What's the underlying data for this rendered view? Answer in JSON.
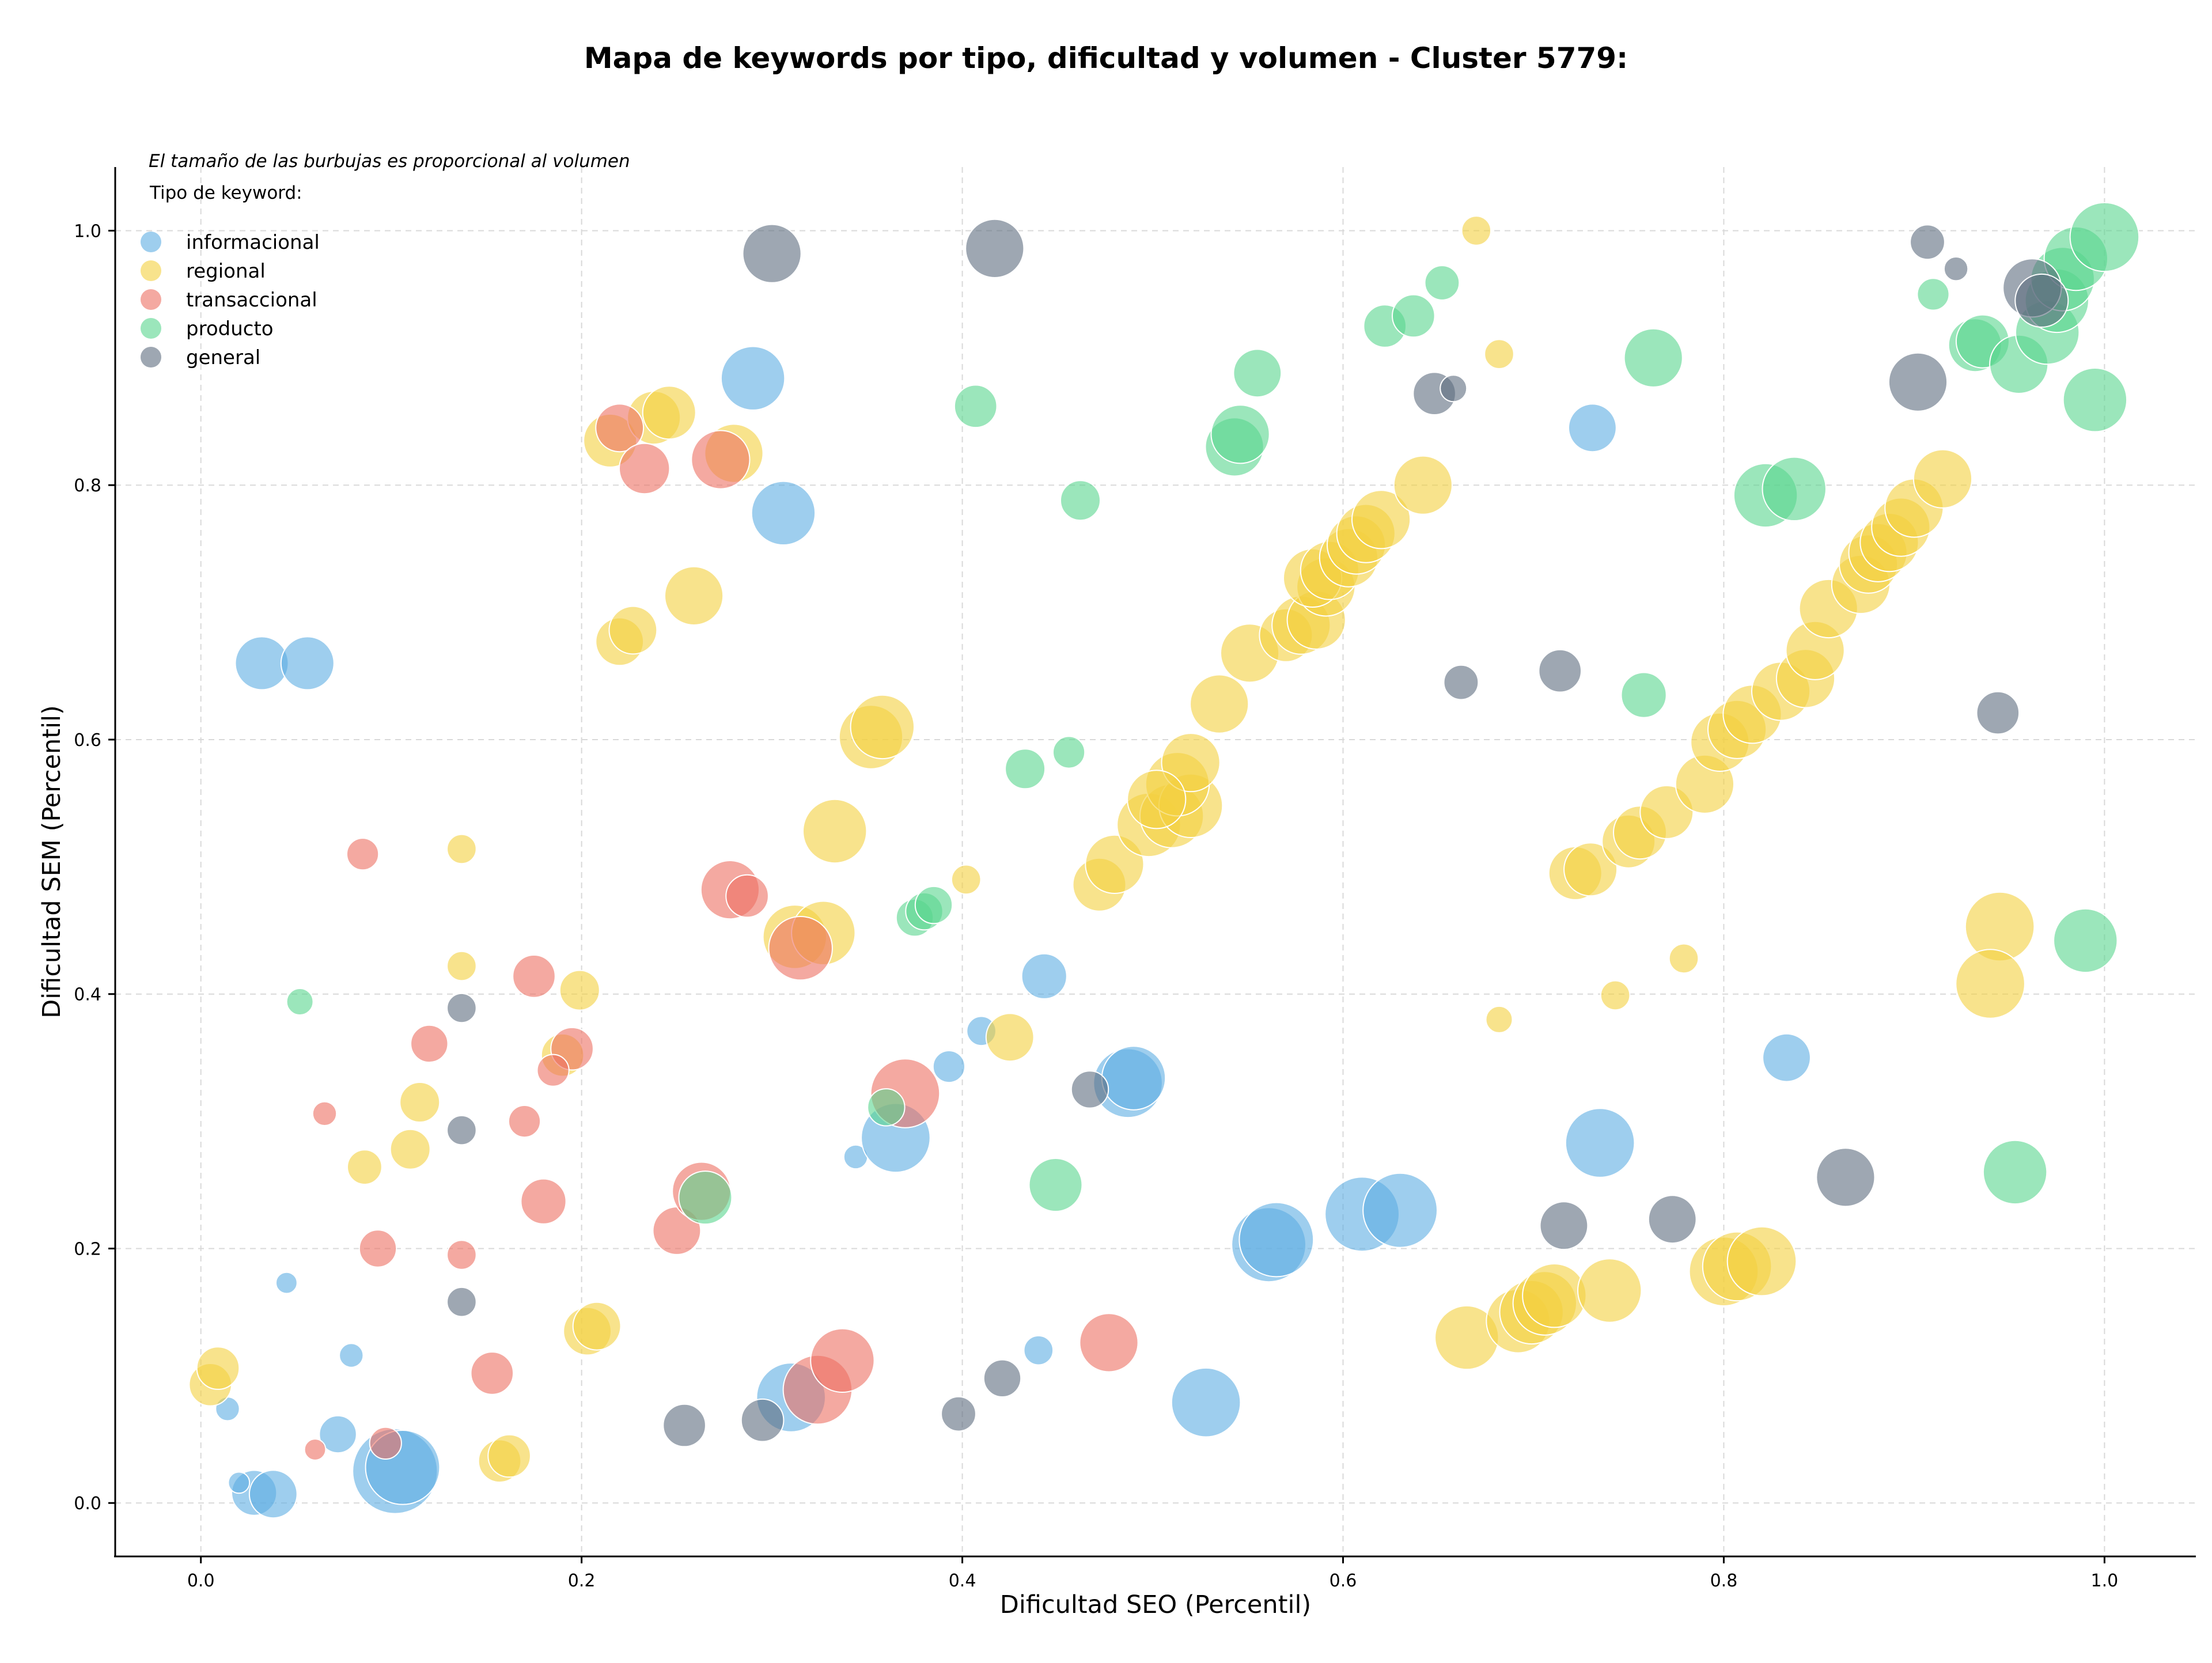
{
  "chart_data": {
    "type": "scatter",
    "title": "Mapa de keywords por tipo, dificultad y volumen - Cluster 5779:",
    "xlabel": "Dificultad SEO (Percentil)",
    "ylabel": "Dificultad SEM (Percentil)",
    "xlim": [
      -0.045,
      1.048
    ],
    "ylim": [
      -0.042,
      1.05
    ],
    "xticks": [
      0.0,
      0.2,
      0.4,
      0.6,
      0.8,
      1.0
    ],
    "xtick_labels": [
      "0.0",
      "0.2",
      "0.4",
      "0.6",
      "0.8",
      "1.0"
    ],
    "yticks": [
      0.0,
      0.2,
      0.4,
      0.6,
      0.8,
      1.0
    ],
    "ytick_labels": [
      "0.0",
      "0.2",
      "0.4",
      "0.6",
      "0.8",
      "1.0"
    ],
    "grid": true,
    "legend_title": "Tipo de keyword:",
    "legend_position": "top-left",
    "note": "El tamaño de las burbujas es proporcional al volumen",
    "series": [
      {
        "name": "informacional",
        "color": "#5dade2",
        "points": [
          [
            0.032,
            0.66,
            1.0
          ],
          [
            0.056,
            0.66,
            1.0
          ],
          [
            0.29,
            0.884,
            1.2
          ],
          [
            0.306,
            0.778,
            1.2
          ],
          [
            0.014,
            0.074,
            0.45
          ],
          [
            0.028,
            0.008,
            0.85
          ],
          [
            0.038,
            0.007,
            0.9
          ],
          [
            0.02,
            0.016,
            0.4
          ],
          [
            0.045,
            0.173,
            0.4
          ],
          [
            0.079,
            0.116,
            0.45
          ],
          [
            0.072,
            0.054,
            0.7
          ],
          [
            0.102,
            0.025,
            1.6
          ],
          [
            0.106,
            0.028,
            1.4
          ],
          [
            0.31,
            0.083,
            1.3
          ],
          [
            0.344,
            0.272,
            0.45
          ],
          [
            0.365,
            0.287,
            1.3
          ],
          [
            0.393,
            0.343,
            0.6
          ],
          [
            0.41,
            0.371,
            0.55
          ],
          [
            0.443,
            0.414,
            0.85
          ],
          [
            0.44,
            0.12,
            0.55
          ],
          [
            0.487,
            0.33,
            1.3
          ],
          [
            0.49,
            0.334,
            1.2
          ],
          [
            0.528,
            0.079,
            1.3
          ],
          [
            0.561,
            0.203,
            1.4
          ],
          [
            0.565,
            0.207,
            1.4
          ],
          [
            0.61,
            0.227,
            1.4
          ],
          [
            0.63,
            0.23,
            1.4
          ],
          [
            0.731,
            0.845,
            0.9
          ],
          [
            0.735,
            0.283,
            1.3
          ],
          [
            0.833,
            0.35,
            0.9
          ]
        ]
      },
      {
        "name": "regional",
        "color": "#f4d03f",
        "points": [
          [
            0.005,
            0.093,
            0.8
          ],
          [
            0.009,
            0.106,
            0.8
          ],
          [
            0.11,
            0.278,
            0.75
          ],
          [
            0.086,
            0.264,
            0.65
          ],
          [
            0.115,
            0.315,
            0.75
          ],
          [
            0.137,
            0.422,
            0.55
          ],
          [
            0.137,
            0.514,
            0.55
          ],
          [
            0.199,
            0.403,
            0.75
          ],
          [
            0.19,
            0.352,
            0.8
          ],
          [
            0.157,
            0.033,
            0.8
          ],
          [
            0.162,
            0.037,
            0.8
          ],
          [
            0.203,
            0.135,
            0.9
          ],
          [
            0.208,
            0.139,
            0.9
          ],
          [
            0.215,
            0.835,
            1.0
          ],
          [
            0.238,
            0.853,
            1.0
          ],
          [
            0.246,
            0.857,
            1.0
          ],
          [
            0.28,
            0.825,
            1.1
          ],
          [
            0.22,
            0.677,
            0.9
          ],
          [
            0.227,
            0.686,
            0.9
          ],
          [
            0.259,
            0.713,
            1.1
          ],
          [
            0.352,
            0.602,
            1.2
          ],
          [
            0.358,
            0.61,
            1.2
          ],
          [
            0.333,
            0.528,
            1.2
          ],
          [
            0.312,
            0.445,
            1.2
          ],
          [
            0.327,
            0.448,
            1.2
          ],
          [
            0.402,
            0.49,
            0.55
          ],
          [
            0.425,
            0.366,
            0.9
          ],
          [
            0.472,
            0.486,
            1.0
          ],
          [
            0.48,
            0.502,
            1.1
          ],
          [
            0.498,
            0.533,
            1.2
          ],
          [
            0.51,
            0.54,
            1.2
          ],
          [
            0.52,
            0.548,
            1.2
          ],
          [
            0.513,
            0.565,
            1.2
          ],
          [
            0.52,
            0.582,
            1.1
          ],
          [
            0.502,
            0.553,
            1.1
          ],
          [
            0.535,
            0.628,
            1.1
          ],
          [
            0.551,
            0.668,
            1.1
          ],
          [
            0.57,
            0.682,
            1.0
          ],
          [
            0.578,
            0.69,
            1.1
          ],
          [
            0.586,
            0.694,
            1.1
          ],
          [
            0.591,
            0.72,
            1.1
          ],
          [
            0.584,
            0.727,
            1.1
          ],
          [
            0.593,
            0.733,
            1.1
          ],
          [
            0.603,
            0.743,
            1.1
          ],
          [
            0.607,
            0.753,
            1.1
          ],
          [
            0.612,
            0.762,
            1.1
          ],
          [
            0.62,
            0.773,
            1.1
          ],
          [
            0.642,
            0.8,
            1.1
          ],
          [
            0.67,
            1.0,
            0.55
          ],
          [
            0.682,
            0.903,
            0.55
          ],
          [
            0.682,
            0.38,
            0.5
          ],
          [
            0.743,
            0.399,
            0.55
          ],
          [
            0.779,
            0.428,
            0.55
          ],
          [
            0.665,
            0.13,
            1.2
          ],
          [
            0.692,
            0.143,
            1.2
          ],
          [
            0.699,
            0.15,
            1.2
          ],
          [
            0.706,
            0.157,
            1.2
          ],
          [
            0.711,
            0.163,
            1.2
          ],
          [
            0.74,
            0.167,
            1.2
          ],
          [
            0.722,
            0.495,
            1.0
          ],
          [
            0.73,
            0.498,
            1.0
          ],
          [
            0.75,
            0.52,
            1.0
          ],
          [
            0.756,
            0.527,
            1.0
          ],
          [
            0.77,
            0.543,
            1.0
          ],
          [
            0.79,
            0.565,
            1.1
          ],
          [
            0.798,
            0.598,
            1.1
          ],
          [
            0.807,
            0.608,
            1.1
          ],
          [
            0.815,
            0.62,
            1.1
          ],
          [
            0.83,
            0.638,
            1.1
          ],
          [
            0.843,
            0.648,
            1.1
          ],
          [
            0.848,
            0.67,
            1.1
          ],
          [
            0.855,
            0.703,
            1.1
          ],
          [
            0.872,
            0.722,
            1.1
          ],
          [
            0.876,
            0.738,
            1.1
          ],
          [
            0.881,
            0.747,
            1.1
          ],
          [
            0.887,
            0.755,
            1.1
          ],
          [
            0.893,
            0.767,
            1.1
          ],
          [
            0.9,
            0.782,
            1.1
          ],
          [
            0.915,
            0.805,
            1.1
          ],
          [
            0.8,
            0.182,
            1.3
          ],
          [
            0.807,
            0.186,
            1.3
          ],
          [
            0.82,
            0.19,
            1.3
          ],
          [
            0.945,
            0.453,
            1.3
          ],
          [
            0.94,
            0.408,
            1.3
          ]
        ]
      },
      {
        "name": "transaccional",
        "color": "#ec7063",
        "points": [
          [
            0.22,
            0.845,
            0.9
          ],
          [
            0.233,
            0.813,
            0.95
          ],
          [
            0.273,
            0.82,
            1.1
          ],
          [
            0.085,
            0.51,
            0.6
          ],
          [
            0.12,
            0.361,
            0.7
          ],
          [
            0.175,
            0.414,
            0.8
          ],
          [
            0.195,
            0.357,
            0.8
          ],
          [
            0.185,
            0.34,
            0.6
          ],
          [
            0.17,
            0.3,
            0.6
          ],
          [
            0.065,
            0.306,
            0.45
          ],
          [
            0.18,
            0.237,
            0.85
          ],
          [
            0.093,
            0.2,
            0.7
          ],
          [
            0.137,
            0.195,
            0.55
          ],
          [
            0.153,
            0.102,
            0.8
          ],
          [
            0.06,
            0.042,
            0.4
          ],
          [
            0.097,
            0.047,
            0.6
          ],
          [
            0.278,
            0.482,
            1.1
          ],
          [
            0.287,
            0.477,
            0.8
          ],
          [
            0.315,
            0.436,
            1.2
          ],
          [
            0.37,
            0.322,
            1.3
          ],
          [
            0.25,
            0.214,
            0.9
          ],
          [
            0.263,
            0.245,
            1.1
          ],
          [
            0.324,
            0.089,
            1.3
          ],
          [
            0.337,
            0.112,
            1.2
          ],
          [
            0.477,
            0.126,
            1.1
          ]
        ]
      },
      {
        "name": "producto",
        "color": "#58d68d",
        "points": [
          [
            0.052,
            0.394,
            0.5
          ],
          [
            0.265,
            0.24,
            1.0
          ],
          [
            0.36,
            0.311,
            0.7
          ],
          [
            0.375,
            0.46,
            0.7
          ],
          [
            0.38,
            0.465,
            0.7
          ],
          [
            0.385,
            0.47,
            0.7
          ],
          [
            0.433,
            0.577,
            0.75
          ],
          [
            0.456,
            0.59,
            0.6
          ],
          [
            0.407,
            0.862,
            0.8
          ],
          [
            0.449,
            0.25,
            1.0
          ],
          [
            0.462,
            0.788,
            0.75
          ],
          [
            0.543,
            0.83,
            1.1
          ],
          [
            0.546,
            0.84,
            1.1
          ],
          [
            0.555,
            0.888,
            0.9
          ],
          [
            0.622,
            0.925,
            0.8
          ],
          [
            0.637,
            0.933,
            0.8
          ],
          [
            0.652,
            0.959,
            0.65
          ],
          [
            0.763,
            0.9,
            1.1
          ],
          [
            0.758,
            0.635,
            0.85
          ],
          [
            0.822,
            0.792,
            1.2
          ],
          [
            0.837,
            0.797,
            1.2
          ],
          [
            0.91,
            0.95,
            0.6
          ],
          [
            0.932,
            0.91,
            1.0
          ],
          [
            0.936,
            0.913,
            1.0
          ],
          [
            0.955,
            0.895,
            1.1
          ],
          [
            0.97,
            0.92,
            1.2
          ],
          [
            0.975,
            0.945,
            1.2
          ],
          [
            0.978,
            0.962,
            1.2
          ],
          [
            0.985,
            0.978,
            1.2
          ],
          [
            1.0,
            0.995,
            1.3
          ],
          [
            0.995,
            0.867,
            1.2
          ],
          [
            0.99,
            0.442,
            1.2
          ],
          [
            0.953,
            0.26,
            1.2
          ]
        ]
      },
      {
        "name": "general",
        "color": "#5d6d7e",
        "points": [
          [
            0.3,
            0.982,
            1.1
          ],
          [
            0.417,
            0.986,
            1.1
          ],
          [
            0.137,
            0.389,
            0.55
          ],
          [
            0.137,
            0.293,
            0.55
          ],
          [
            0.137,
            0.158,
            0.55
          ],
          [
            0.254,
            0.061,
            0.8
          ],
          [
            0.295,
            0.065,
            0.8
          ],
          [
            0.398,
            0.07,
            0.65
          ],
          [
            0.421,
            0.098,
            0.7
          ],
          [
            0.467,
            0.325,
            0.7
          ],
          [
            0.648,
            0.872,
            0.8
          ],
          [
            0.658,
            0.876,
            0.5
          ],
          [
            0.662,
            0.645,
            0.65
          ],
          [
            0.714,
            0.654,
            0.8
          ],
          [
            0.716,
            0.218,
            0.9
          ],
          [
            0.773,
            0.223,
            0.9
          ],
          [
            0.864,
            0.256,
            1.1
          ],
          [
            0.902,
            0.881,
            1.1
          ],
          [
            0.907,
            0.991,
            0.65
          ],
          [
            0.922,
            0.97,
            0.45
          ],
          [
            0.944,
            0.621,
            0.8
          ],
          [
            0.962,
            0.955,
            1.1
          ],
          [
            0.967,
            0.945,
            1.0
          ]
        ]
      }
    ]
  }
}
